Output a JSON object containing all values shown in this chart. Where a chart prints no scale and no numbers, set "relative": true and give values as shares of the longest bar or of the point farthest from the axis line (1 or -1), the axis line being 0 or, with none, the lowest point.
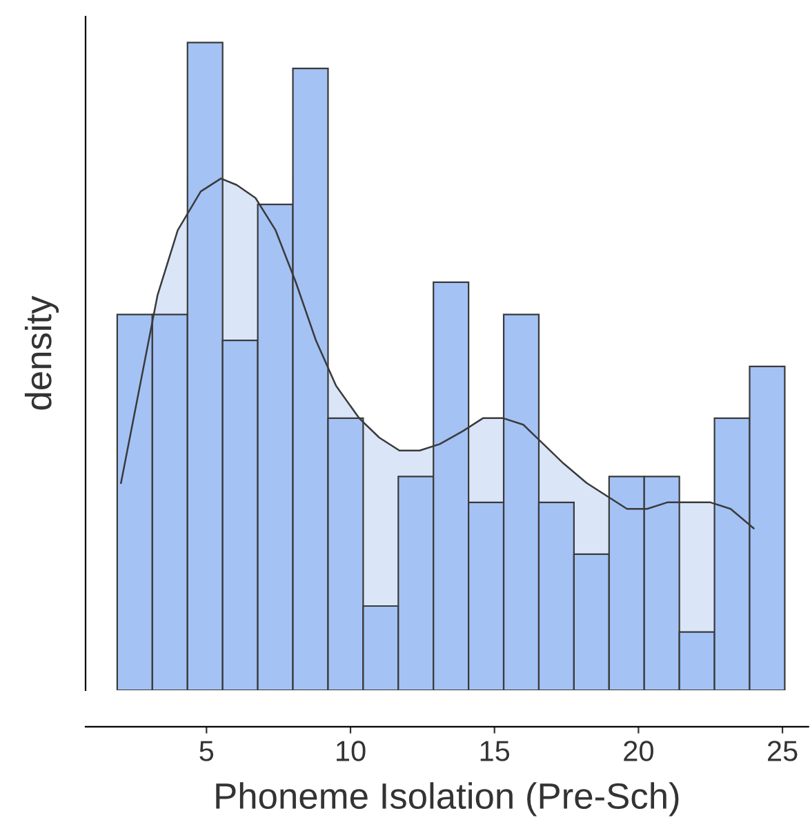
{
  "chart_data": {
    "type": "histogram",
    "relative": true,
    "xlabel": "Phoneme Isolation (Pre-Sch)",
    "ylabel": "density",
    "tick_labels": "x",
    "xlim": [
      0.8,
      25.9
    ],
    "xticks": [
      5,
      10,
      15,
      20,
      25
    ],
    "grid": false,
    "legend": false,
    "bins": [
      1.9,
      3.12,
      4.34,
      5.56,
      6.78,
      8.0,
      9.22,
      10.44,
      11.66,
      12.88,
      14.1,
      15.32,
      16.54,
      17.76,
      18.98,
      20.2,
      21.42,
      22.64,
      23.86,
      25.08
    ],
    "series": [
      {
        "color": "#a4c2f4",
        "values": [
          0.58,
          0.58,
          1.0,
          0.54,
          0.75,
          0.96,
          0.42,
          0.13,
          0.33,
          0.63,
          0.29,
          0.58,
          0.29,
          0.21,
          0.33,
          0.33,
          0.09,
          0.42,
          0.5
        ]
      },
      {
        "type": "area",
        "color": "#dae6f7",
        "x": [
          2.03,
          2.6,
          3.3,
          4.0,
          4.8,
          5.5,
          6.05,
          6.7,
          7.4,
          8.1,
          8.8,
          9.5,
          10.3,
          11.0,
          11.7,
          12.4,
          13.1,
          13.9,
          14.6,
          15.3,
          16.0,
          16.7,
          17.4,
          18.2,
          18.9,
          19.6,
          20.3,
          21.0,
          21.7,
          22.5,
          23.2,
          24.0
        ],
        "values": [
          0.32,
          0.45,
          0.61,
          0.71,
          0.77,
          0.79,
          0.78,
          0.76,
          0.71,
          0.63,
          0.54,
          0.47,
          0.42,
          0.39,
          0.37,
          0.37,
          0.38,
          0.4,
          0.42,
          0.42,
          0.41,
          0.38,
          0.35,
          0.32,
          0.3,
          0.28,
          0.28,
          0.29,
          0.29,
          0.29,
          0.28,
          0.25
        ]
      }
    ]
  }
}
